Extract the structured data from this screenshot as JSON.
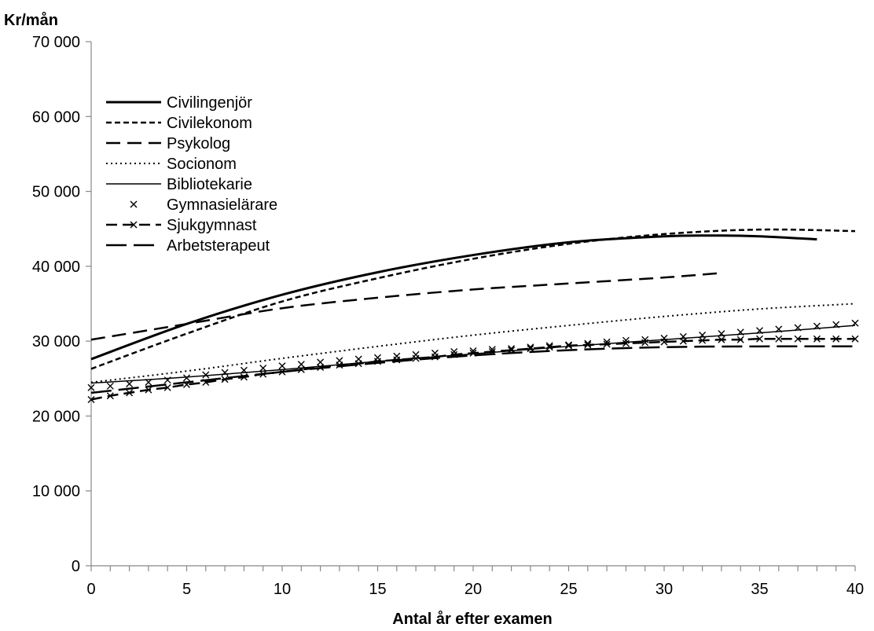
{
  "chart_data": {
    "type": "line",
    "title": "",
    "ylabel": "Kr/mån",
    "xlabel": "Antal år efter examen",
    "xlim": [
      0,
      40
    ],
    "ylim": [
      0,
      70000
    ],
    "x_ticks": [
      0,
      5,
      10,
      15,
      20,
      25,
      30,
      35,
      40
    ],
    "x_tick_labels": [
      "0",
      "5",
      "10",
      "15",
      "20",
      "25",
      "30",
      "35",
      "40"
    ],
    "y_ticks": [
      0,
      10000,
      20000,
      30000,
      40000,
      50000,
      60000,
      70000
    ],
    "y_tick_labels": [
      "0",
      "10 000",
      "20 000",
      "30 000",
      "40 000",
      "50 000",
      "60 000",
      "70 000"
    ],
    "grid": false,
    "legend_position": "top-left",
    "series": [
      {
        "name": "Civilingenjör",
        "style": "solid-thick",
        "points": [
          [
            0,
            27600
          ],
          [
            5,
            32300
          ],
          [
            10,
            36200
          ],
          [
            15,
            39200
          ],
          [
            20,
            41500
          ],
          [
            25,
            43200
          ],
          [
            30,
            44000
          ],
          [
            33,
            44100
          ],
          [
            35,
            44000
          ],
          [
            38,
            43600
          ]
        ]
      },
      {
        "name": "Civilekonom",
        "style": "short-dash",
        "points": [
          [
            0,
            26300
          ],
          [
            5,
            31000
          ],
          [
            10,
            35300
          ],
          [
            15,
            38400
          ],
          [
            20,
            41000
          ],
          [
            25,
            43000
          ],
          [
            30,
            44300
          ],
          [
            35,
            44900
          ],
          [
            40,
            44700
          ]
        ]
      },
      {
        "name": "Psykolog",
        "style": "long-dash",
        "points": [
          [
            0,
            30200
          ],
          [
            5,
            32300
          ],
          [
            10,
            34400
          ],
          [
            15,
            35800
          ],
          [
            20,
            36900
          ],
          [
            25,
            37700
          ],
          [
            30,
            38500
          ],
          [
            33,
            39100
          ]
        ]
      },
      {
        "name": "Socionom",
        "style": "dotted",
        "points": [
          [
            0,
            24500
          ],
          [
            5,
            26000
          ],
          [
            10,
            27700
          ],
          [
            15,
            29300
          ],
          [
            20,
            30800
          ],
          [
            25,
            32100
          ],
          [
            30,
            33300
          ],
          [
            35,
            34300
          ],
          [
            40,
            35000
          ]
        ]
      },
      {
        "name": "Bibliotekarie",
        "style": "solid-thin",
        "points": [
          [
            0,
            24400
          ],
          [
            5,
            25200
          ],
          [
            10,
            26200
          ],
          [
            15,
            27300
          ],
          [
            20,
            28300
          ],
          [
            25,
            29300
          ],
          [
            30,
            30200
          ],
          [
            35,
            31100
          ],
          [
            40,
            32100
          ]
        ]
      },
      {
        "name": "Gymnasielärare",
        "style": "x-markers",
        "points": [
          [
            0,
            23800
          ],
          [
            1,
            24000
          ],
          [
            2,
            24300
          ],
          [
            3,
            24500
          ],
          [
            4,
            24800
          ],
          [
            5,
            25100
          ],
          [
            6,
            25500
          ],
          [
            7,
            25800
          ],
          [
            8,
            26100
          ],
          [
            9,
            26400
          ],
          [
            10,
            26700
          ],
          [
            11,
            26900
          ],
          [
            12,
            27200
          ],
          [
            13,
            27400
          ],
          [
            14,
            27600
          ],
          [
            15,
            27800
          ],
          [
            16,
            28000
          ],
          [
            17,
            28200
          ],
          [
            18,
            28400
          ],
          [
            19,
            28600
          ],
          [
            20,
            28700
          ],
          [
            21,
            28900
          ],
          [
            22,
            29000
          ],
          [
            23,
            29200
          ],
          [
            24,
            29400
          ],
          [
            25,
            29500
          ],
          [
            26,
            29700
          ],
          [
            27,
            29900
          ],
          [
            28,
            30100
          ],
          [
            29,
            30200
          ],
          [
            30,
            30400
          ],
          [
            31,
            30600
          ],
          [
            32,
            30800
          ],
          [
            33,
            31000
          ],
          [
            34,
            31200
          ],
          [
            35,
            31400
          ],
          [
            36,
            31600
          ],
          [
            37,
            31800
          ],
          [
            38,
            32000
          ],
          [
            39,
            32200
          ],
          [
            40,
            32400
          ]
        ]
      },
      {
        "name": "Sjukgymnast",
        "style": "dash-x",
        "points": [
          [
            0,
            22200
          ],
          [
            1,
            22700
          ],
          [
            2,
            23100
          ],
          [
            3,
            23500
          ],
          [
            4,
            23800
          ],
          [
            5,
            24200
          ],
          [
            6,
            24500
          ],
          [
            7,
            24900
          ],
          [
            8,
            25200
          ],
          [
            9,
            25600
          ],
          [
            10,
            25900
          ],
          [
            11,
            26200
          ],
          [
            12,
            26500
          ],
          [
            13,
            26800
          ],
          [
            14,
            27000
          ],
          [
            15,
            27300
          ],
          [
            16,
            27500
          ],
          [
            17,
            27700
          ],
          [
            18,
            27900
          ],
          [
            19,
            28200
          ],
          [
            20,
            28400
          ],
          [
            21,
            28600
          ],
          [
            22,
            28800
          ],
          [
            23,
            29000
          ],
          [
            24,
            29200
          ],
          [
            25,
            29400
          ],
          [
            26,
            29500
          ],
          [
            27,
            29600
          ],
          [
            28,
            29700
          ],
          [
            29,
            29800
          ],
          [
            30,
            29900
          ],
          [
            31,
            30000
          ],
          [
            32,
            30100
          ],
          [
            33,
            30200
          ],
          [
            34,
            30200
          ],
          [
            35,
            30300
          ],
          [
            36,
            30300
          ],
          [
            37,
            30300
          ],
          [
            38,
            30300
          ],
          [
            39,
            30300
          ],
          [
            40,
            30300
          ]
        ]
      },
      {
        "name": "Arbetsterapeut",
        "style": "longer-dash",
        "points": [
          [
            0,
            23100
          ],
          [
            5,
            24500
          ],
          [
            10,
            25900
          ],
          [
            15,
            27100
          ],
          [
            20,
            28100
          ],
          [
            25,
            28800
          ],
          [
            30,
            29200
          ],
          [
            35,
            29300
          ],
          [
            40,
            29300
          ]
        ]
      }
    ]
  }
}
